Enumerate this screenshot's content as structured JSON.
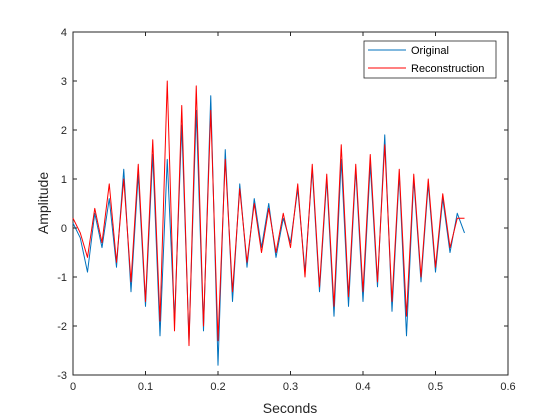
{
  "chart_data": {
    "type": "line",
    "title": "",
    "xlabel": "Seconds",
    "ylabel": "Amplitude",
    "xlim": [
      0,
      0.6
    ],
    "ylim": [
      -3,
      4
    ],
    "xticks": [
      0,
      0.1,
      0.2,
      0.3,
      0.4,
      0.5,
      0.6
    ],
    "xtick_labels": [
      "0",
      "0.1",
      "0.2",
      "0.3",
      "0.4",
      "0.5",
      "0.6"
    ],
    "yticks": [
      -3,
      -2,
      -1,
      0,
      1,
      2,
      3,
      4
    ],
    "ytick_labels": [
      "-3",
      "-2",
      "-1",
      "0",
      "1",
      "2",
      "3",
      "4"
    ],
    "grid": false,
    "legend_position": "top-right",
    "series": [
      {
        "name": "Original",
        "color": "#0072BD",
        "x": [
          0,
          0.01,
          0.02,
          0.03,
          0.04,
          0.05,
          0.06,
          0.07,
          0.08,
          0.09,
          0.1,
          0.11,
          0.12,
          0.13,
          0.14,
          0.15,
          0.16,
          0.17,
          0.18,
          0.19,
          0.2,
          0.21,
          0.22,
          0.23,
          0.24,
          0.25,
          0.26,
          0.27,
          0.28,
          0.29,
          0.3,
          0.31,
          0.32,
          0.33,
          0.34,
          0.35,
          0.36,
          0.37,
          0.38,
          0.39,
          0.4,
          0.41,
          0.42,
          0.43,
          0.44,
          0.45,
          0.46,
          0.47,
          0.48,
          0.49,
          0.5,
          0.51,
          0.52,
          0.53,
          0.54
        ],
        "y": [
          0.1,
          -0.2,
          -0.9,
          0.3,
          -0.4,
          0.6,
          -0.8,
          1.2,
          -1.3,
          1.1,
          -1.6,
          1.5,
          -2.2,
          1.4,
          -1.9,
          2.1,
          -2.3,
          2.4,
          -2.1,
          2.7,
          -2.8,
          1.6,
          -1.5,
          0.9,
          -0.8,
          0.6,
          -0.4,
          0.5,
          -0.6,
          0.2,
          -0.3,
          0.8,
          -0.9,
          1.2,
          -1.3,
          1.0,
          -1.8,
          1.4,
          -1.6,
          1.2,
          -1.5,
          1.3,
          -1.2,
          1.9,
          -1.7,
          1.1,
          -2.2,
          1.0,
          -1.1,
          0.9,
          -0.9,
          0.6,
          -0.5,
          0.3,
          -0.1
        ]
      },
      {
        "name": "Reconstruction",
        "color": "#FF0000",
        "x": [
          0,
          0.01,
          0.02,
          0.03,
          0.04,
          0.05,
          0.06,
          0.07,
          0.08,
          0.09,
          0.1,
          0.11,
          0.12,
          0.13,
          0.14,
          0.15,
          0.16,
          0.17,
          0.18,
          0.19,
          0.2,
          0.21,
          0.22,
          0.23,
          0.24,
          0.25,
          0.26,
          0.27,
          0.28,
          0.29,
          0.3,
          0.31,
          0.32,
          0.33,
          0.34,
          0.35,
          0.36,
          0.37,
          0.38,
          0.39,
          0.4,
          0.41,
          0.42,
          0.43,
          0.44,
          0.45,
          0.46,
          0.47,
          0.48,
          0.49,
          0.5,
          0.51,
          0.52,
          0.53,
          0.54
        ],
        "y": [
          0.2,
          -0.1,
          -0.6,
          0.4,
          -0.3,
          0.9,
          -0.7,
          1.0,
          -1.1,
          1.3,
          -1.5,
          1.8,
          -1.9,
          3.0,
          -2.1,
          2.5,
          -2.4,
          2.9,
          -2.0,
          2.4,
          -2.3,
          1.4,
          -1.3,
          0.8,
          -0.7,
          0.5,
          -0.5,
          0.4,
          -0.5,
          0.3,
          -0.4,
          0.9,
          -1.0,
          1.3,
          -1.2,
          1.1,
          -1.6,
          1.7,
          -1.4,
          1.3,
          -1.3,
          1.5,
          -1.1,
          1.7,
          -1.5,
          1.2,
          -1.8,
          1.1,
          -1.0,
          1.0,
          -0.8,
          0.7,
          -0.4,
          0.2,
          0.2
        ]
      }
    ]
  }
}
